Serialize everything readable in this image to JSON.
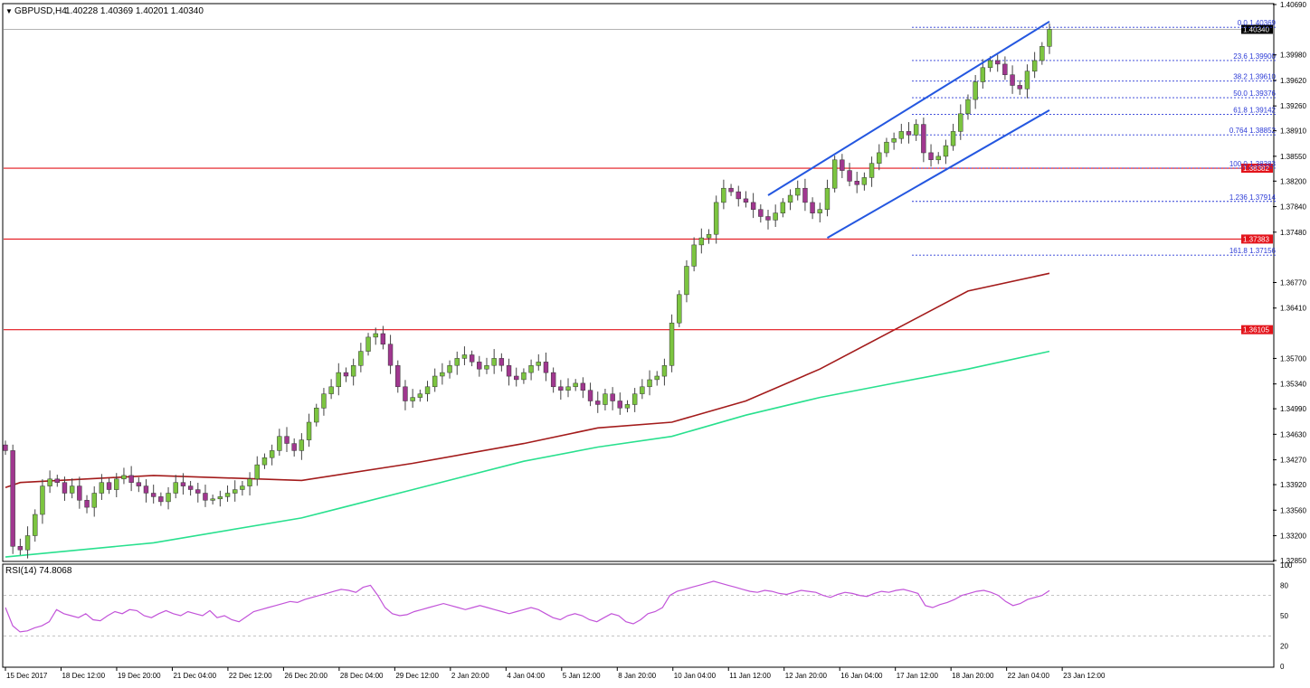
{
  "header": {
    "symbol_label": "GBPUSD,H4",
    "ohlc": "1.40228 1.40369 1.40201 1.40340"
  },
  "colors": {
    "background": "#ffffff",
    "bull": "#7cc540",
    "bear": "#a0378f",
    "wick": "#444444",
    "ma_slow": "#a31b1b",
    "ma_fast": "#28e08e",
    "channel": "#2457e0",
    "horizontal": "#e3141b",
    "fib": "#2b3ad6",
    "rsi": "#c254d9",
    "price_tag_red": "#e3141b",
    "price_tag_black": "#000000"
  },
  "chart_data": {
    "type": "candlestick",
    "symbol": "GBPUSD",
    "timeframe": "H4",
    "ylim": [
      1.3285,
      1.4069
    ],
    "y_ticks": [
      "1.40690",
      "1.39980",
      "1.39620",
      "1.39260",
      "1.38910",
      "1.38550",
      "1.38200",
      "1.37840",
      "1.37480",
      "1.36770",
      "1.36410",
      "1.35700",
      "1.35340",
      "1.34990",
      "1.34630",
      "1.34270",
      "1.33920",
      "1.33560",
      "1.33200",
      "1.32850"
    ],
    "x_labels": [
      "15 Dec 2017",
      "18 Dec 12:00",
      "19 Dec 20:00",
      "21 Dec 04:00",
      "22 Dec 12:00",
      "26 Dec 20:00",
      "28 Dec 04:00",
      "29 Dec 12:00",
      "2 Jan 20:00",
      "4 Jan 04:00",
      "5 Jan 12:00",
      "8 Jan 20:00",
      "10 Jan 04:00",
      "11 Jan 12:00",
      "12 Jan 20:00",
      "16 Jan 04:00",
      "17 Jan 12:00",
      "18 Jan 20:00",
      "22 Jan 04:00",
      "23 Jan 12:00"
    ],
    "current_price": "1.40340",
    "close_series": [
      1.344,
      1.3305,
      1.33,
      1.332,
      1.335,
      1.339,
      1.34,
      1.3395,
      1.338,
      1.339,
      1.337,
      1.336,
      1.338,
      1.3395,
      1.3385,
      1.34,
      1.3405,
      1.3395,
      1.339,
      1.338,
      1.3375,
      1.3368,
      1.338,
      1.3395,
      1.339,
      1.3385,
      1.338,
      1.337,
      1.3372,
      1.3375,
      1.338,
      1.3385,
      1.339,
      1.34,
      1.342,
      1.343,
      1.344,
      1.346,
      1.345,
      1.344,
      1.3455,
      1.348,
      1.35,
      1.352,
      1.353,
      1.355,
      1.3545,
      1.356,
      1.358,
      1.36,
      1.3605,
      1.359,
      1.356,
      1.353,
      1.351,
      1.3515,
      1.352,
      1.353,
      1.3545,
      1.355,
      1.356,
      1.357,
      1.3575,
      1.3565,
      1.3555,
      1.356,
      1.357,
      1.356,
      1.3545,
      1.354,
      1.355,
      1.356,
      1.3565,
      1.355,
      1.353,
      1.3525,
      1.353,
      1.3535,
      1.3525,
      1.351,
      1.3505,
      1.352,
      1.351,
      1.35,
      1.3505,
      1.352,
      1.353,
      1.354,
      1.3545,
      1.356,
      1.362,
      1.366,
      1.37,
      1.373,
      1.374,
      1.3745,
      1.379,
      1.381,
      1.3805,
      1.3795,
      1.379,
      1.378,
      1.377,
      1.3765,
      1.3775,
      1.379,
      1.38,
      1.381,
      1.379,
      1.3775,
      1.378,
      1.381,
      1.385,
      1.3835,
      1.382,
      1.3815,
      1.3825,
      1.3845,
      1.386,
      1.3875,
      1.388,
      1.389,
      1.3885,
      1.39,
      1.386,
      1.385,
      1.3855,
      1.387,
      1.389,
      1.3915,
      1.3935,
      1.396,
      1.398,
      1.399,
      1.3985,
      1.397,
      1.3955,
      1.395,
      1.3975,
      1.399,
      1.401,
      1.4034
    ],
    "ma_slow": {
      "name": "",
      "points": [
        [
          0,
          1.3388
        ],
        [
          2,
          1.3395
        ],
        [
          20,
          1.3405
        ],
        [
          40,
          1.3398
        ],
        [
          55,
          1.3422
        ],
        [
          70,
          1.345
        ],
        [
          80,
          1.3472
        ],
        [
          90,
          1.348
        ],
        [
          100,
          1.351
        ],
        [
          110,
          1.3555
        ],
        [
          120,
          1.361
        ],
        [
          130,
          1.3665
        ],
        [
          141,
          1.369
        ]
      ]
    },
    "ma_fast": {
      "name": "",
      "points": [
        [
          0,
          1.329
        ],
        [
          20,
          1.331
        ],
        [
          40,
          1.3345
        ],
        [
          55,
          1.3385
        ],
        [
          70,
          1.3425
        ],
        [
          80,
          1.3445
        ],
        [
          90,
          1.346
        ],
        [
          100,
          1.349
        ],
        [
          110,
          1.3515
        ],
        [
          120,
          1.3535
        ],
        [
          130,
          1.3555
        ],
        [
          141,
          1.358
        ]
      ]
    },
    "horizontal_levels": [
      {
        "value": 1.36105,
        "label": "1.36105"
      },
      {
        "value": 1.37383,
        "label": "1.37383"
      },
      {
        "value": 1.38382,
        "label": "1.38382"
      }
    ],
    "fibonacci": [
      {
        "level": "0.0",
        "value": 1.40369,
        "label": "0.0  1.40369"
      },
      {
        "level": "23.6",
        "value": 1.399,
        "label": "23.6  1.39900"
      },
      {
        "level": "38.2",
        "value": 1.3961,
        "label": "38.2  1.39610"
      },
      {
        "level": "50.0",
        "value": 1.39376,
        "label": "50.0  1.39376"
      },
      {
        "level": "61.8",
        "value": 1.39142,
        "label": "61.8  1.39142"
      },
      {
        "level": "0.764",
        "value": 1.38852,
        "label": "0.764  1.38852"
      },
      {
        "level": "100.0",
        "value": 1.38383,
        "label": "100.0  1.38383"
      },
      {
        "level": "1.236",
        "value": 1.37914,
        "label": "1.236  1.37914"
      },
      {
        "level": "161.8",
        "value": 1.37156,
        "label": "161.8  1.37156"
      }
    ],
    "channel": {
      "upper": [
        [
          103,
          1.38
        ],
        [
          141,
          1.4045
        ]
      ],
      "lower": [
        [
          111,
          1.374
        ],
        [
          141,
          1.392
        ]
      ]
    },
    "rsi": {
      "label": "RSI(14) 74.8068",
      "ylim": [
        0,
        100
      ],
      "ticks": [
        "100",
        "80",
        "50",
        "20",
        "0"
      ],
      "levels": [
        70,
        30
      ],
      "values": [
        58,
        40,
        34,
        35,
        38,
        40,
        44,
        56,
        52,
        50,
        48,
        52,
        46,
        45,
        50,
        54,
        52,
        56,
        55,
        50,
        48,
        52,
        55,
        52,
        50,
        54,
        52,
        50,
        55,
        48,
        50,
        46,
        44,
        49,
        54,
        56,
        58,
        60,
        62,
        64,
        63,
        66,
        68,
        70,
        72,
        74,
        76,
        75,
        73,
        78,
        80,
        70,
        58,
        52,
        50,
        51,
        54,
        56,
        58,
        60,
        62,
        60,
        58,
        56,
        58,
        60,
        58,
        56,
        54,
        52,
        54,
        56,
        58,
        56,
        52,
        48,
        46,
        50,
        52,
        50,
        46,
        44,
        48,
        52,
        50,
        44,
        42,
        46,
        52,
        54,
        58,
        70,
        74,
        76,
        78,
        80,
        82,
        84,
        82,
        80,
        78,
        76,
        74,
        73,
        75,
        74,
        72,
        71,
        73,
        75,
        74,
        73,
        70,
        68,
        71,
        73,
        72,
        70,
        69,
        72,
        74,
        73,
        75,
        76,
        74,
        72,
        60,
        58,
        61,
        63,
        66,
        70,
        72,
        74,
        75,
        73,
        70,
        64,
        60,
        62,
        66,
        68,
        70,
        74.8
      ]
    }
  }
}
